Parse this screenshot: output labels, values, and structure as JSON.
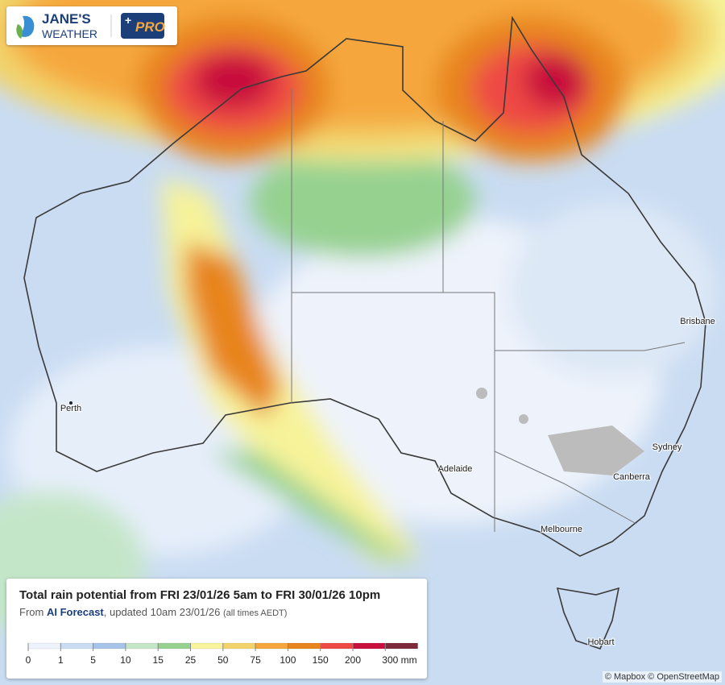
{
  "logo": {
    "line1": "JANE'S",
    "line2": "WEATHER",
    "badge": "PRO"
  },
  "cities": [
    "Perth",
    "Adelaide",
    "Melbourne",
    "Canberra",
    "Sydney",
    "Brisbane",
    "Hobart"
  ],
  "panel": {
    "title": "Total rain potential from FRI 23/01/26 5am to FRI 30/01/26 10pm",
    "subtitle": [
      "From ",
      "AI Forecast",
      ", updated 10am 23/01/26 ",
      "(all times AEDT)"
    ],
    "legend": {
      "ticks": [
        0,
        1,
        5,
        10,
        15,
        25,
        50,
        75,
        100,
        150,
        200,
        {
          "value": 300,
          "label": "300 mm"
        }
      ],
      "colors": [
        "#eef3fb",
        "#c9dcf2",
        "#a7c4e8",
        "#c4e6c8",
        "#96d190",
        "#f7f39a",
        "#f2d36b",
        "#f5a73c",
        "#e8841e",
        "#ee4a44",
        "#c8103e",
        "#7e2a3a"
      ]
    }
  },
  "attribution": "© Mapbox © OpenStreetMap"
}
